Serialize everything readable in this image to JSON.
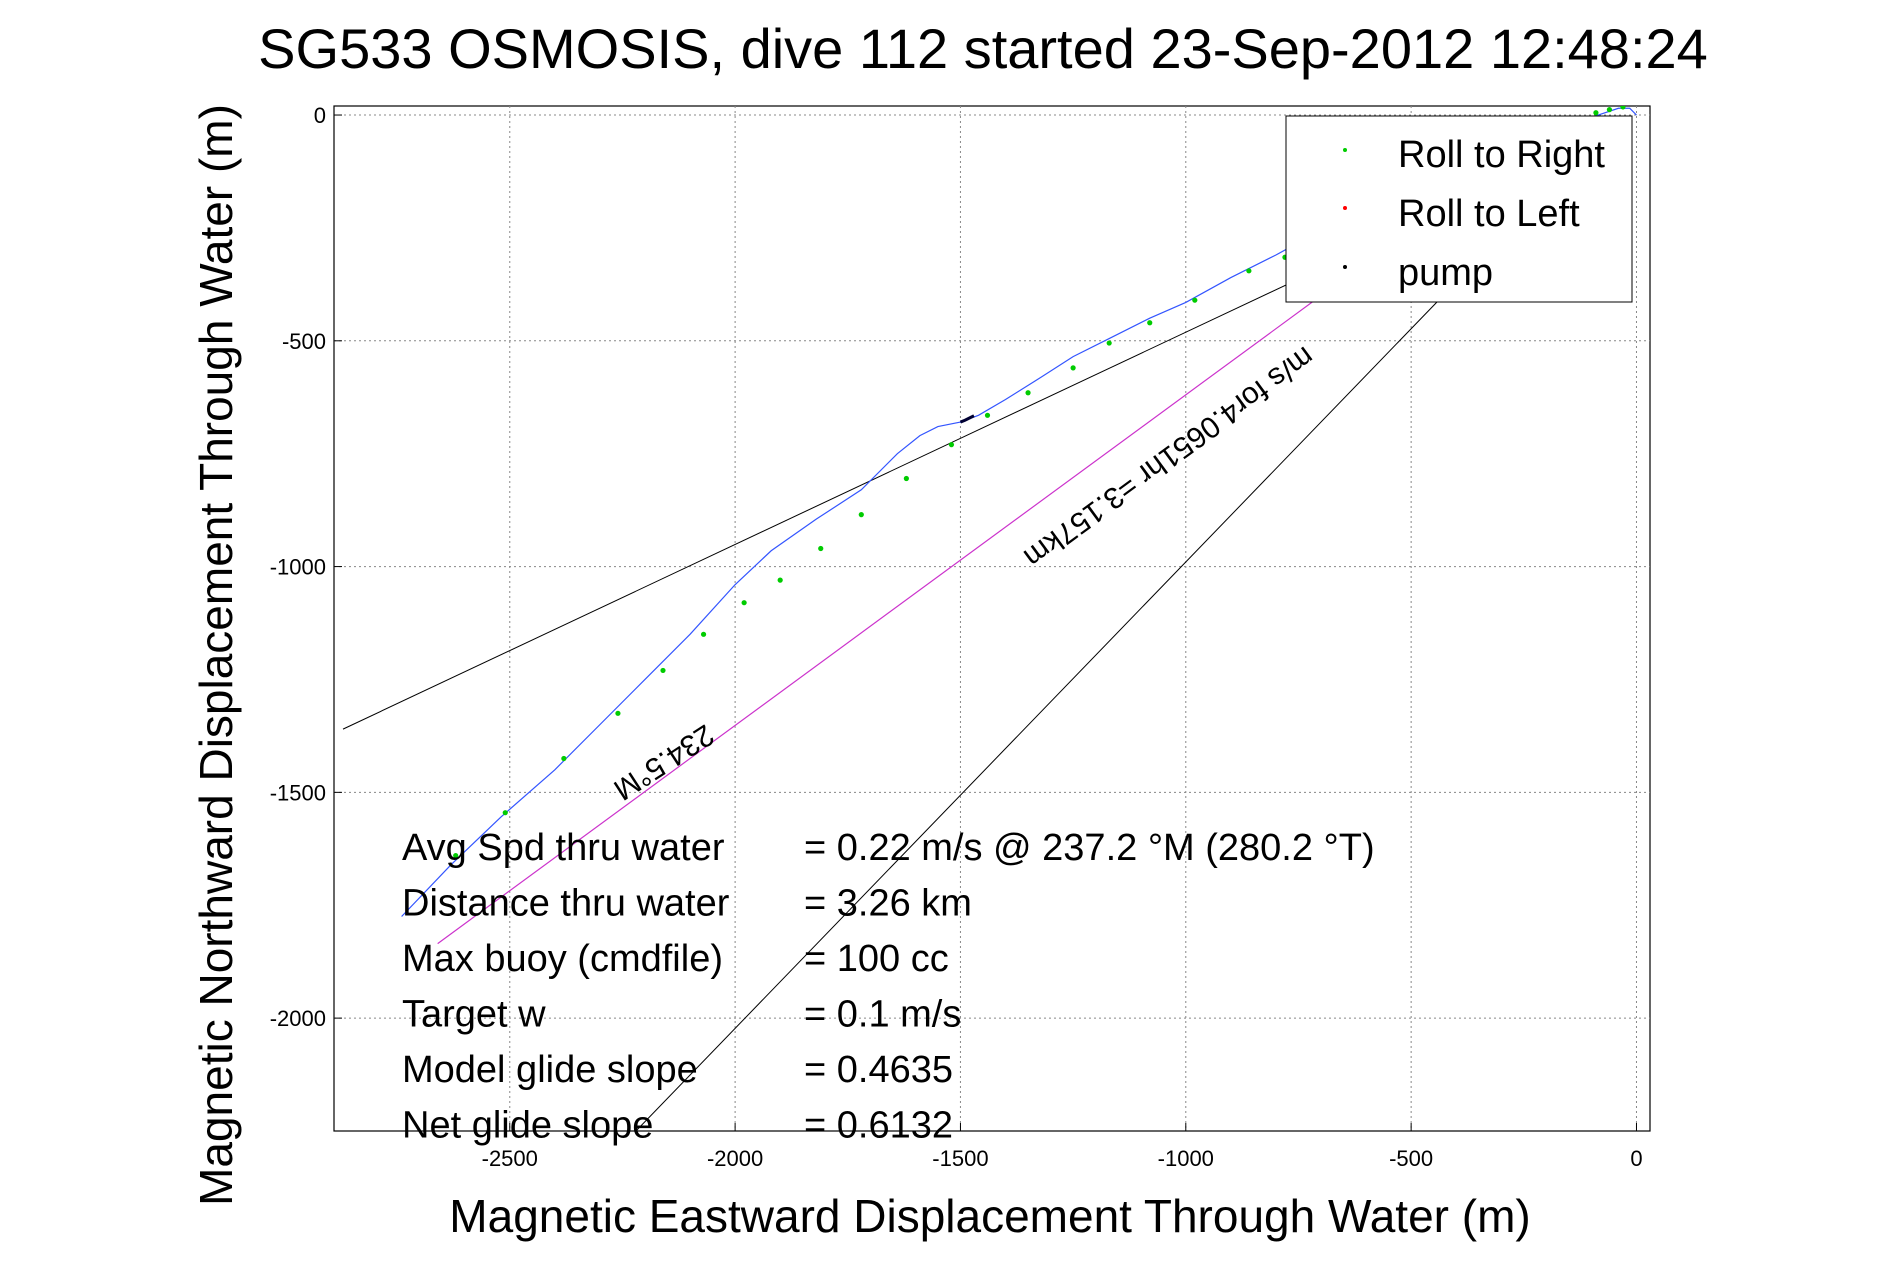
{
  "chart_data": {
    "type": "line",
    "title": "SG533 OSMOSIS, dive 112 started 23-Sep-2012 12:48:24",
    "xlabel": "Magnetic Eastward Displacement Through Water (m)",
    "ylabel": "Magnetic Northward Displacement Through Water (m)",
    "xlim": [
      -2890,
      30
    ],
    "ylim": [
      -2250,
      20
    ],
    "grid": true,
    "x_ticks": [
      -2500,
      -2000,
      -1500,
      -1000,
      -500,
      0
    ],
    "x_tick_labels": [
      "-2500",
      "-2000",
      "-1500",
      "-1000",
      "-500",
      "0"
    ],
    "y_ticks": [
      0,
      -500,
      -1000,
      -1500,
      -2000
    ],
    "y_tick_labels": [
      "0",
      "-500",
      "-1000",
      "-1500",
      "-2000"
    ],
    "legend": {
      "placement": "top-right",
      "entries": [
        {
          "label": "Roll to Right",
          "color": "#00cc00"
        },
        {
          "label": "Roll to Left",
          "color": "#ff0000"
        },
        {
          "label": "pump",
          "color": "#000000"
        }
      ]
    },
    "colors": {
      "track": "#3355ff",
      "roll_right": "#00cc00",
      "current": "#cc33cc",
      "reference": "#000000"
    },
    "series": [
      {
        "name": "track",
        "x": [
          -2740,
          -2630,
          -2520,
          -2400,
          -2300,
          -2200,
          -2100,
          -2000,
          -1920,
          -1820,
          -1720,
          -1640,
          -1590,
          -1550,
          -1500,
          -1460,
          -1400,
          -1320,
          -1250,
          -1170,
          -1080,
          -1000,
          -900,
          -800,
          -700,
          -600,
          -500,
          -400,
          -300,
          -200,
          -100,
          -40,
          -15,
          0
        ],
        "y": [
          -1775,
          -1660,
          -1555,
          -1450,
          -1350,
          -1250,
          -1150,
          -1040,
          -965,
          -895,
          -830,
          -750,
          -710,
          -690,
          -680,
          -665,
          -630,
          -580,
          -535,
          -495,
          -450,
          -415,
          -360,
          -310,
          -255,
          -200,
          -150,
          -110,
          -70,
          -35,
          -5,
          15,
          15,
          0
        ]
      },
      {
        "name": "Roll to Right",
        "x": [
          -2620,
          -2510,
          -2380,
          -2260,
          -2160,
          -2070,
          -1980,
          -1900,
          -1810,
          -1720,
          -1620,
          -1520,
          -1440,
          -1350,
          -1250,
          -1170,
          -1080,
          -980,
          -860,
          -780,
          -690,
          -580,
          -470,
          -360,
          -260,
          -150,
          -90,
          -60,
          -30
        ],
        "y": [
          -1640,
          -1545,
          -1425,
          -1325,
          -1230,
          -1150,
          -1080,
          -1030,
          -960,
          -885,
          -805,
          -730,
          -665,
          -615,
          -560,
          -505,
          -460,
          -410,
          -345,
          -315,
          -260,
          -190,
          -140,
          -100,
          -55,
          -20,
          5,
          12,
          18
        ]
      },
      {
        "name": "pump",
        "x": [
          -1500,
          -1490,
          -1480,
          -1470
        ],
        "y": [
          -680,
          -676,
          -671,
          -666
        ]
      },
      {
        "name": "current",
        "x": [
          -2660,
          -700
        ],
        "y": [
          -1835,
          -400
        ]
      },
      {
        "name": "reference-1",
        "x": [
          -2870,
          -700
        ],
        "y": [
          -1360,
          -340
        ]
      },
      {
        "name": "reference-2",
        "x": [
          -2220,
          -400
        ],
        "y": [
          -2250,
          -370
        ]
      }
    ],
    "annotations": {
      "heading_label": "234.5°M",
      "current_label": "m/s for4.0651hr =3.157km",
      "stats": [
        {
          "label": "Avg Spd thru water",
          "value": "=  0.22 m/s @ 237.2 °M (280.2 °T)"
        },
        {
          "label": "Distance thru water",
          "value": "=  3.26 km"
        },
        {
          "label": "Max buoy (cmdfile)",
          "value": "= 100 cc"
        },
        {
          "label": "Target w",
          "value": "= 0.1 m/s"
        },
        {
          "label": "Model glide slope",
          "value": "= 0.4635"
        },
        {
          "label": "Net glide slope",
          "value": "= 0.6132"
        }
      ]
    }
  }
}
